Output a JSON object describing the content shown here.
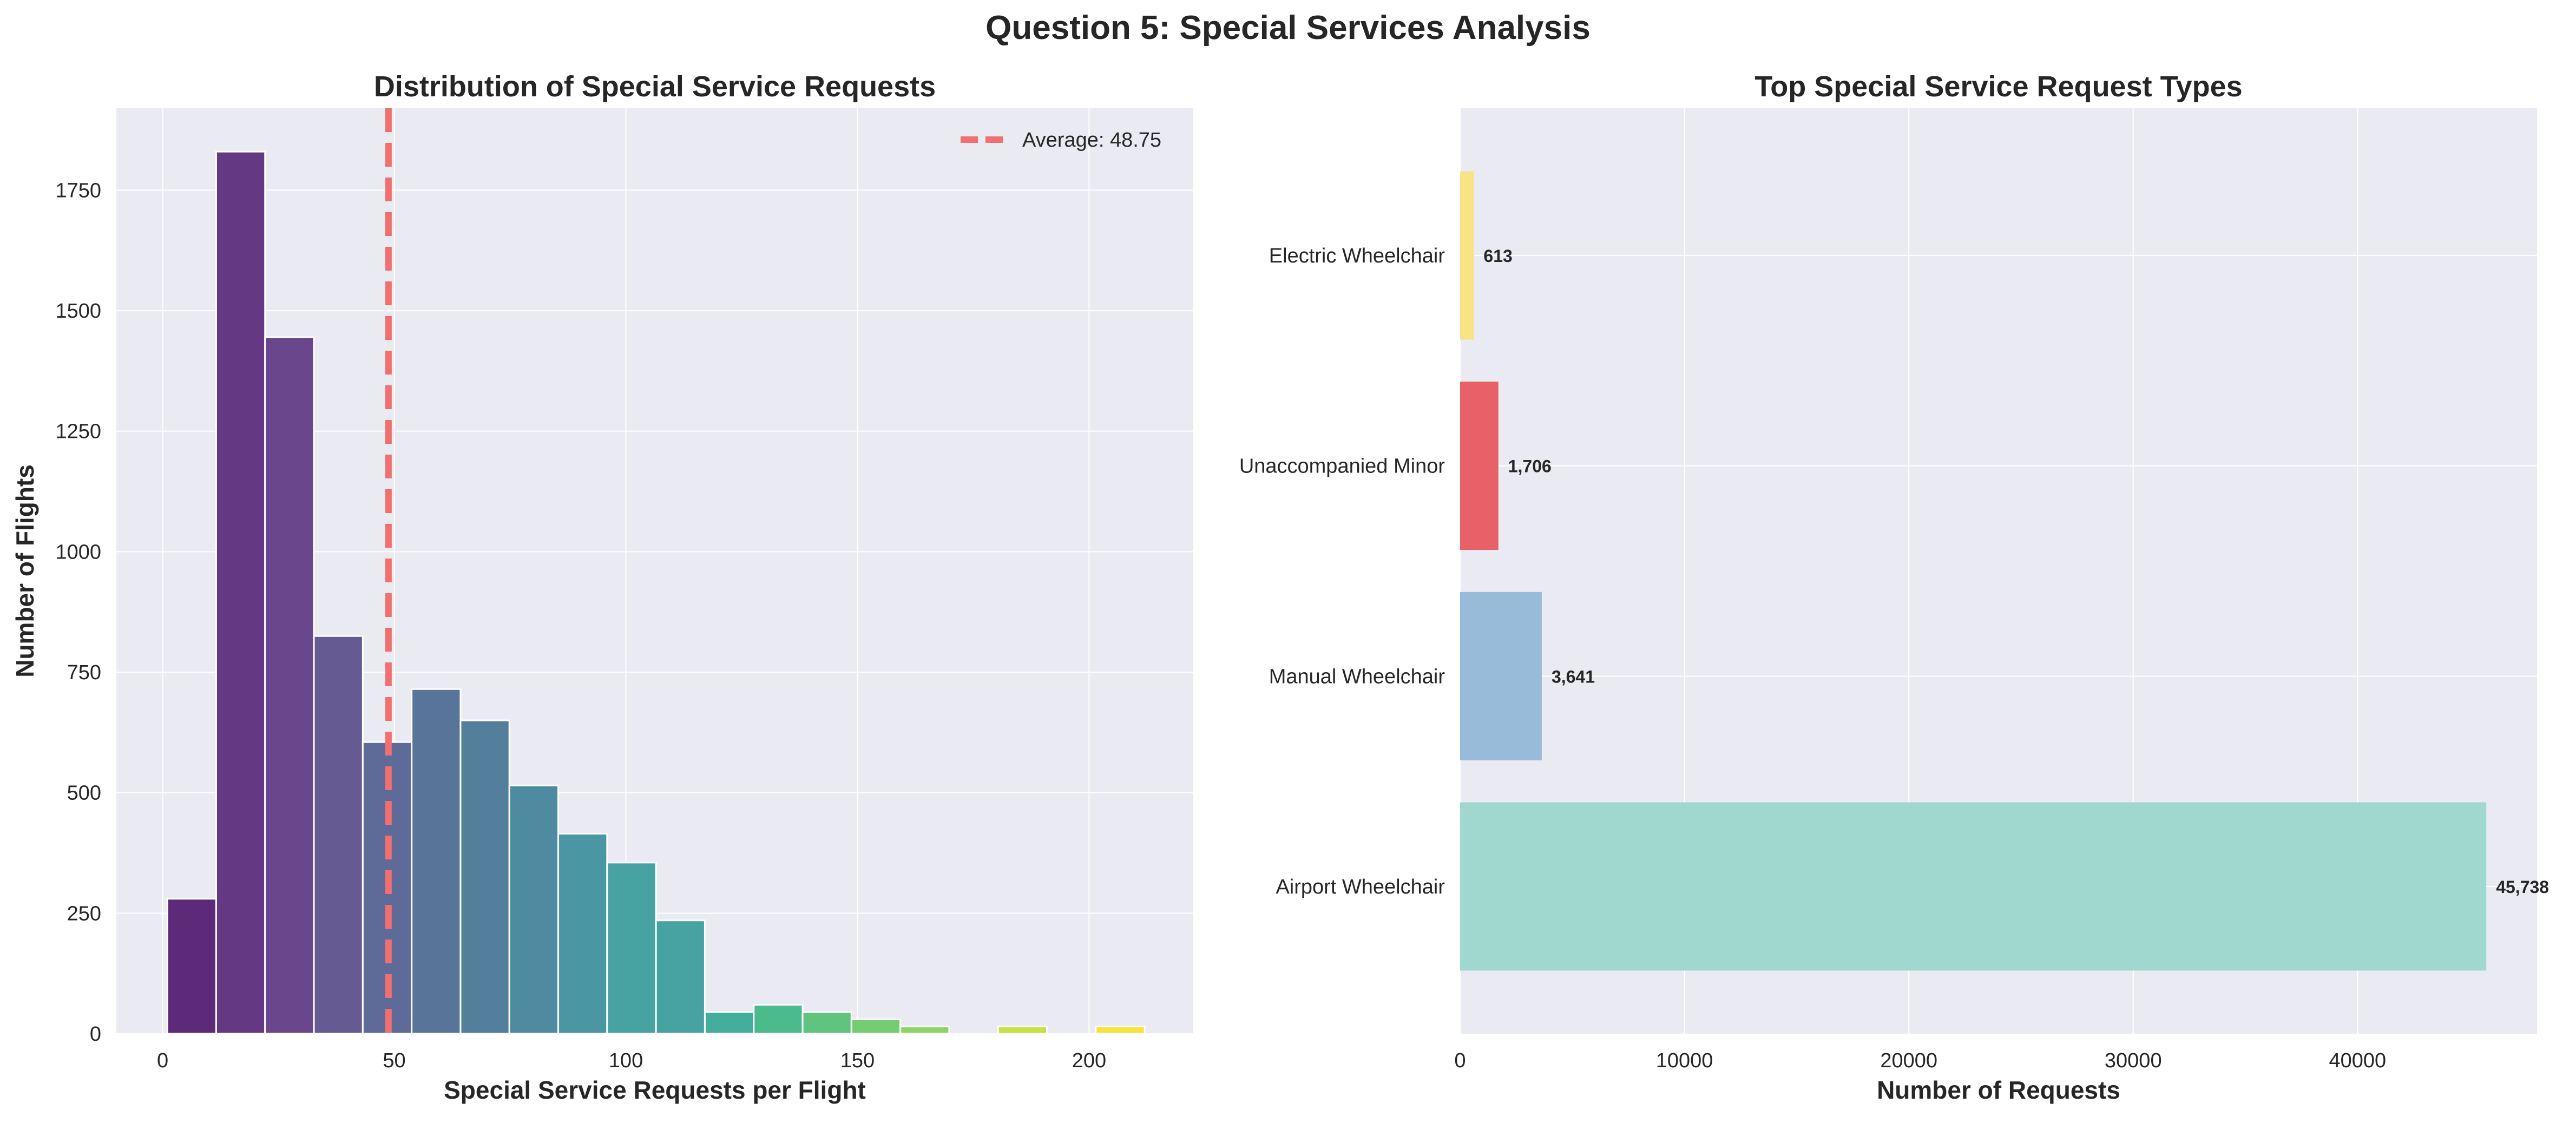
{
  "suptitle": "Question 5: Special Services Analysis",
  "colors": {
    "plot_bg": "#eaeaf2",
    "grid": "#ffffff",
    "text": "#262626",
    "avg_line": "#f07070",
    "hist_bars": [
      "#5c2a78",
      "#643883",
      "#6a478c",
      "#665a93",
      "#5e6a97",
      "#587599",
      "#537f9c",
      "#4e8ba0",
      "#4a96a2",
      "#47a3a1",
      "#43ae9b",
      "#4bbb8c",
      "#60c47e",
      "#74cd72",
      "#8dd565",
      "#a8dc55",
      "#c5e144",
      "#e4e237",
      "#f7e23a"
    ],
    "bar_colors": [
      "#a0d8cf",
      "#98bbda",
      "#e86068",
      "#f7e485"
    ]
  },
  "chart_data": [
    {
      "type": "bar",
      "subtype": "histogram",
      "title": "Distribution of Special Service Requests",
      "xlabel": "Special Service Requests per Flight",
      "ylabel": "Number of Flights",
      "xlim": [
        -10,
        222.5
      ],
      "ylim": [
        0,
        1920
      ],
      "xticks": [
        0,
        50,
        100,
        150,
        200
      ],
      "yticks": [
        0,
        250,
        500,
        750,
        1000,
        1250,
        1500,
        1750
      ],
      "bin_start": 1,
      "bin_width": 10.55,
      "values": [
        280,
        1830,
        1445,
        825,
        605,
        715,
        650,
        515,
        415,
        355,
        235,
        45,
        60,
        45,
        30,
        15,
        0,
        15,
        0,
        15
      ],
      "average_line": {
        "x": 48.75,
        "label": "Average: 48.75"
      },
      "grid": true,
      "legend": "top-right"
    },
    {
      "type": "bar",
      "orientation": "horizontal",
      "title": "Top Special Service Request Types",
      "xlabel": "Number of Requests",
      "ylabel": "",
      "xlim": [
        0,
        48000
      ],
      "xticks": [
        0,
        10000,
        20000,
        30000,
        40000
      ],
      "categories": [
        "Airport Wheelchair",
        "Manual Wheelchair",
        "Unaccompanied Minor",
        "Electric Wheelchair"
      ],
      "values": [
        45738,
        3641,
        1706,
        613
      ],
      "value_labels": [
        "45,738",
        "3,641",
        "1,706",
        "613"
      ],
      "grid": true
    }
  ]
}
